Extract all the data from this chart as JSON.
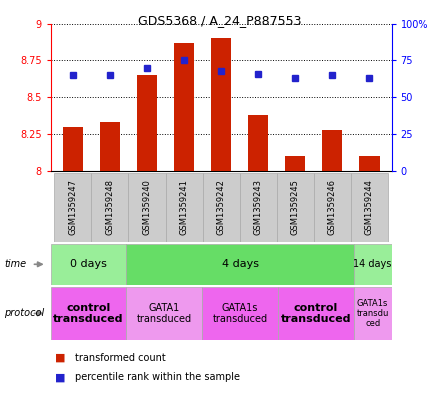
{
  "title": "GDS5368 / A_24_P887553",
  "samples": [
    "GSM1359247",
    "GSM1359248",
    "GSM1359240",
    "GSM1359241",
    "GSM1359242",
    "GSM1359243",
    "GSM1359245",
    "GSM1359246",
    "GSM1359244"
  ],
  "bar_values": [
    8.3,
    8.33,
    8.65,
    8.87,
    8.9,
    8.38,
    8.1,
    8.28,
    8.1
  ],
  "percentile_values": [
    65,
    65,
    70,
    75,
    68,
    66,
    63,
    65,
    63
  ],
  "ylim_left": [
    8.0,
    9.0
  ],
  "ylim_right": [
    0,
    100
  ],
  "yticks_left": [
    8.0,
    8.25,
    8.5,
    8.75,
    9.0
  ],
  "ytick_labels_left": [
    "8",
    "8.25",
    "8.5",
    "8.75",
    "9"
  ],
  "yticks_right": [
    0,
    25,
    50,
    75,
    100
  ],
  "ytick_labels_right": [
    "0",
    "25",
    "50",
    "75",
    "100%"
  ],
  "bar_color": "#cc2200",
  "dot_color": "#2222cc",
  "sample_bg": "#cccccc",
  "time_groups": [
    {
      "label": "0 days",
      "start": 0,
      "end": 2,
      "color": "#99ee99",
      "fontsize": 8
    },
    {
      "label": "4 days",
      "start": 2,
      "end": 8,
      "color": "#66dd66",
      "fontsize": 8
    },
    {
      "label": "14 days",
      "start": 8,
      "end": 9,
      "color": "#99ee99",
      "fontsize": 7
    }
  ],
  "protocol_groups": [
    {
      "label": "control\ntransduced",
      "start": 0,
      "end": 2,
      "color": "#ee66ee",
      "bold": true,
      "fontsize": 8
    },
    {
      "label": "GATA1\ntransduced",
      "start": 2,
      "end": 4,
      "color": "#ee99ee",
      "bold": false,
      "fontsize": 7
    },
    {
      "label": "GATA1s\ntransduced",
      "start": 4,
      "end": 6,
      "color": "#ee66ee",
      "bold": false,
      "fontsize": 7
    },
    {
      "label": "control\ntransduced",
      "start": 6,
      "end": 8,
      "color": "#ee66ee",
      "bold": true,
      "fontsize": 8
    },
    {
      "label": "GATA1s\ntransdu\nced",
      "start": 8,
      "end": 9,
      "color": "#ee99ee",
      "bold": false,
      "fontsize": 6
    }
  ]
}
